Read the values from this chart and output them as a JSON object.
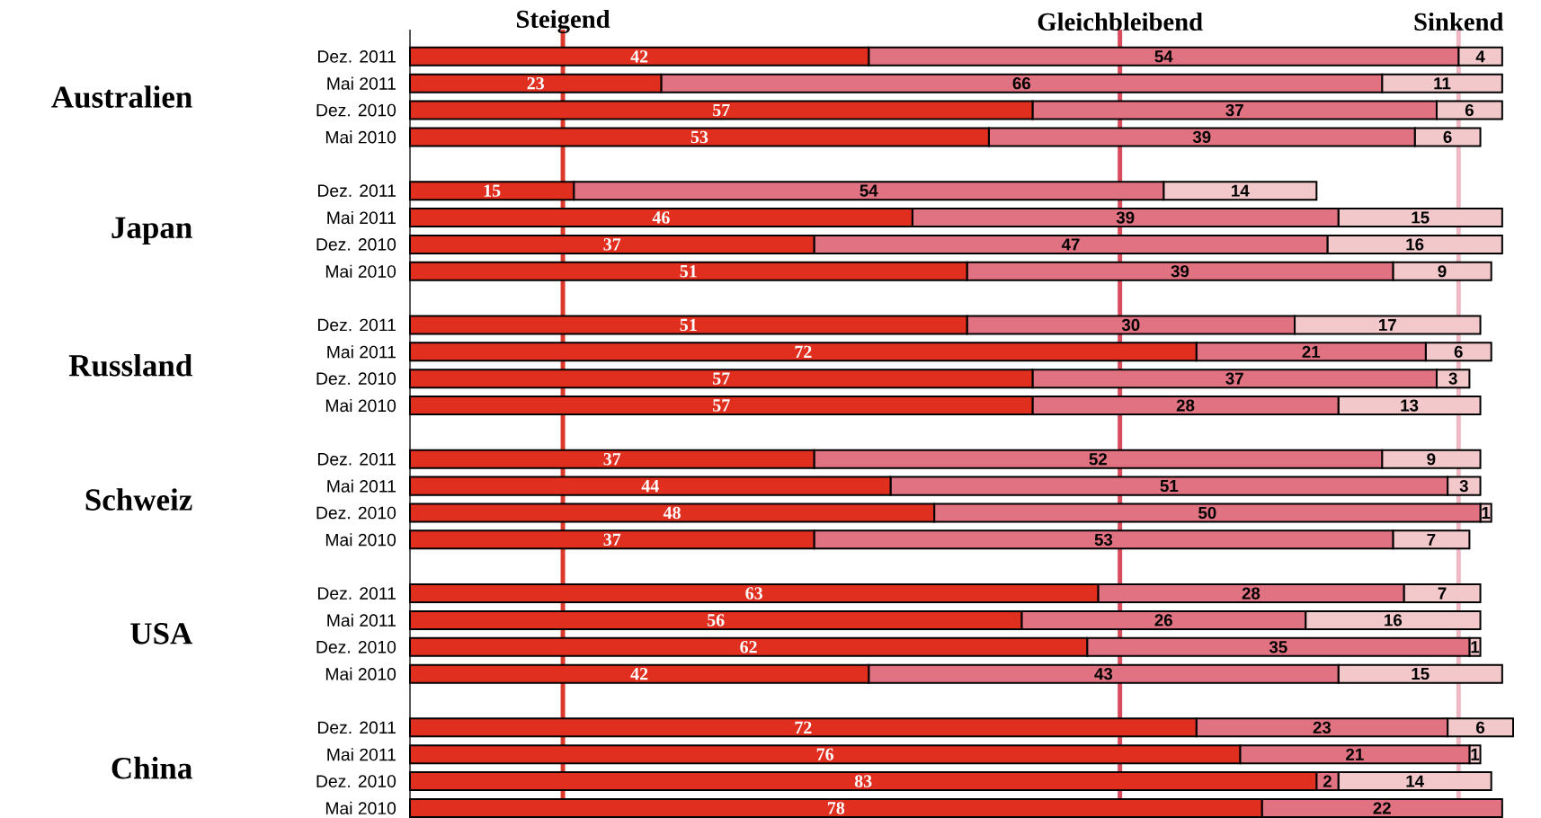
{
  "chart_data": {
    "type": "bar",
    "orientation": "horizontal",
    "stacked": true,
    "data_labels": true,
    "legend": "top",
    "tick_labels": "y",
    "grid": false,
    "categories": [
      "Dez. 2011",
      "Mai 2011",
      "Dez. 2010",
      "Mai 2010",
      "Dez. 2011",
      "Mai 2011",
      "Dez. 2010",
      "Mai 2010",
      "Dez. 2011",
      "Mai 2011",
      "Dez. 2010",
      "Mai 2010",
      "Dez. 2011",
      "Mai 2011",
      "Dez. 2010",
      "Mai 2010",
      "Dez. 2011",
      "Mai 2011",
      "Dez. 2010",
      "Mai 2010",
      "Dez. 2011",
      "Mai 2011",
      "Dez. 2010",
      "Mai 2010"
    ],
    "annotations": [
      "Australien",
      "Japan",
      "Russland",
      "Schweiz",
      "USA",
      "China"
    ],
    "series": [
      {
        "name": "Steigend",
        "color": "#e02e1f",
        "values": [
          42,
          23,
          57,
          53,
          15,
          46,
          37,
          51,
          51,
          72,
          57,
          57,
          37,
          44,
          48,
          37,
          63,
          56,
          62,
          42,
          72,
          76,
          83,
          78
        ]
      },
      {
        "name": "Gleichbleibend",
        "color": "#e07282",
        "values": [
          54,
          66,
          37,
          39,
          54,
          39,
          47,
          39,
          30,
          21,
          37,
          28,
          52,
          51,
          50,
          53,
          28,
          26,
          35,
          43,
          23,
          21,
          2,
          22
        ]
      },
      {
        "name": "Sinkend",
        "color": "#f2c8ca",
        "values": [
          4,
          11,
          6,
          6,
          14,
          15,
          16,
          9,
          17,
          6,
          3,
          13,
          9,
          3,
          1,
          7,
          7,
          16,
          1,
          15,
          6,
          1,
          14,
          null
        ]
      }
    ],
    "ref_lines": [
      {
        "axis": "x",
        "value": 14,
        "color": "#dc3a2c"
      },
      {
        "axis": "x",
        "value": 65,
        "color": "#d84c5e"
      },
      {
        "axis": "x",
        "value": 96,
        "color": "#f0b8c2"
      }
    ]
  }
}
